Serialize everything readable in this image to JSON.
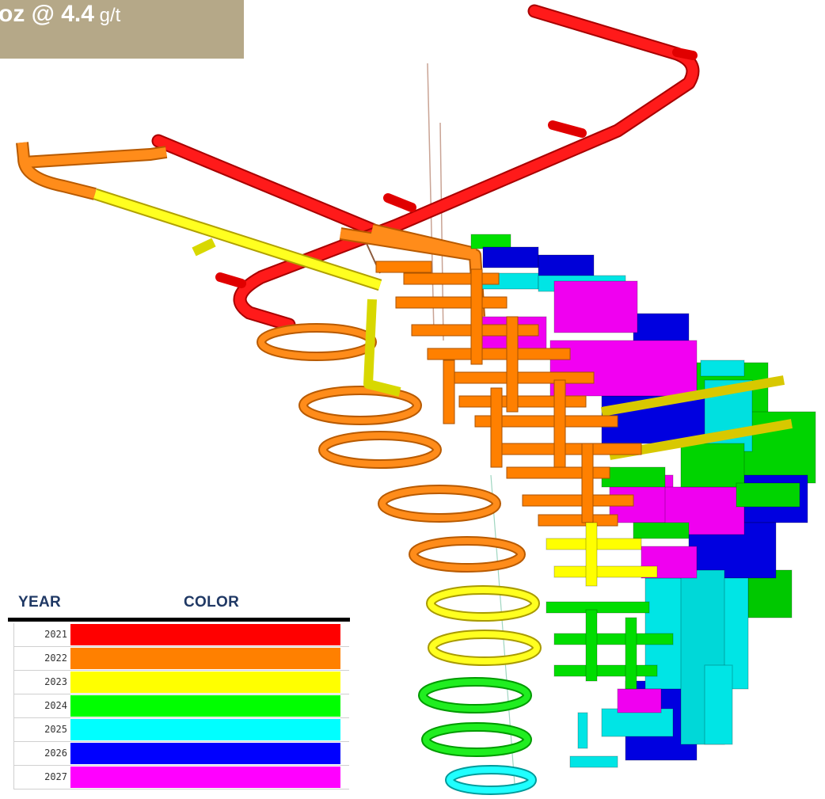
{
  "banner": {
    "bold_text": "oz @ 4.4",
    "unit_text": " g/t",
    "background_color": "#b5a888"
  },
  "legend": {
    "year_header": "YEAR",
    "color_header": "COLOR",
    "header_color": "#1f3864",
    "rows": [
      {
        "year": "2021",
        "color": "#ff0000"
      },
      {
        "year": "2022",
        "color": "#ff8000"
      },
      {
        "year": "2023",
        "color": "#ffff00"
      },
      {
        "year": "2024",
        "color": "#00ff00"
      },
      {
        "year": "2025",
        "color": "#00ffff"
      },
      {
        "year": "2026",
        "color": "#0000ff"
      },
      {
        "year": "2027",
        "color": "#ff00ff"
      }
    ]
  }
}
